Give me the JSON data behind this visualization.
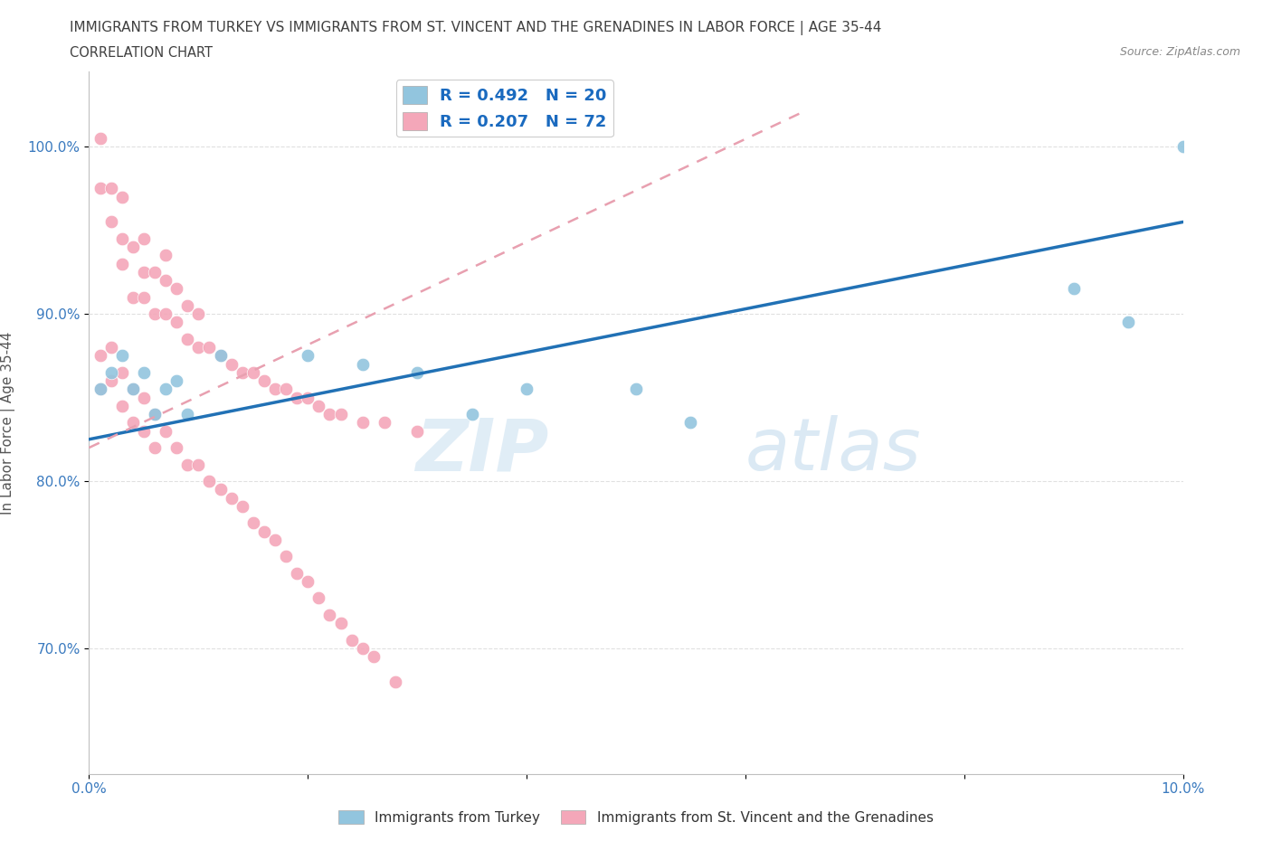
{
  "title": "IMMIGRANTS FROM TURKEY VS IMMIGRANTS FROM ST. VINCENT AND THE GRENADINES IN LABOR FORCE | AGE 35-44",
  "subtitle": "CORRELATION CHART",
  "source": "Source: ZipAtlas.com",
  "ylabel": "In Labor Force | Age 35-44",
  "xlim": [
    0.0,
    0.1
  ],
  "ylim": [
    0.625,
    1.045
  ],
  "x_ticks": [
    0.0,
    0.02,
    0.04,
    0.06,
    0.08,
    0.1
  ],
  "x_tick_labels": [
    "0.0%",
    "",
    "",
    "",
    "",
    "10.0%"
  ],
  "y_ticks": [
    0.7,
    0.8,
    0.9,
    1.0
  ],
  "y_tick_labels": [
    "70.0%",
    "80.0%",
    "90.0%",
    "100.0%"
  ],
  "turkey_R": 0.492,
  "turkey_N": 20,
  "svg_R": 0.207,
  "svg_N": 72,
  "turkey_color": "#92c5de",
  "svg_color": "#f4a7b9",
  "turkey_scatter_x": [
    0.001,
    0.002,
    0.003,
    0.004,
    0.005,
    0.006,
    0.007,
    0.008,
    0.009,
    0.012,
    0.02,
    0.025,
    0.03,
    0.035,
    0.04,
    0.05,
    0.055,
    0.09,
    0.095,
    0.1
  ],
  "turkey_scatter_y": [
    0.855,
    0.865,
    0.875,
    0.855,
    0.865,
    0.84,
    0.855,
    0.86,
    0.84,
    0.875,
    0.875,
    0.87,
    0.865,
    0.84,
    0.855,
    0.855,
    0.835,
    0.915,
    0.895,
    1.0
  ],
  "svg_scatter_x": [
    0.001,
    0.001,
    0.002,
    0.002,
    0.003,
    0.003,
    0.003,
    0.004,
    0.004,
    0.005,
    0.005,
    0.005,
    0.006,
    0.006,
    0.007,
    0.007,
    0.007,
    0.008,
    0.008,
    0.009,
    0.009,
    0.01,
    0.01,
    0.011,
    0.012,
    0.013,
    0.014,
    0.015,
    0.016,
    0.017,
    0.018,
    0.019,
    0.02,
    0.021,
    0.022,
    0.023,
    0.025,
    0.027,
    0.03,
    0.001,
    0.001,
    0.002,
    0.002,
    0.003,
    0.003,
    0.004,
    0.004,
    0.005,
    0.005,
    0.006,
    0.006,
    0.007,
    0.008,
    0.009,
    0.01,
    0.011,
    0.012,
    0.013,
    0.014,
    0.015,
    0.016,
    0.017,
    0.018,
    0.019,
    0.02,
    0.021,
    0.022,
    0.023,
    0.024,
    0.025,
    0.026,
    0.028
  ],
  "svg_scatter_y": [
    0.975,
    1.005,
    0.955,
    0.975,
    0.93,
    0.945,
    0.97,
    0.91,
    0.94,
    0.91,
    0.925,
    0.945,
    0.9,
    0.925,
    0.9,
    0.92,
    0.935,
    0.895,
    0.915,
    0.885,
    0.905,
    0.88,
    0.9,
    0.88,
    0.875,
    0.87,
    0.865,
    0.865,
    0.86,
    0.855,
    0.855,
    0.85,
    0.85,
    0.845,
    0.84,
    0.84,
    0.835,
    0.835,
    0.83,
    0.875,
    0.855,
    0.88,
    0.86,
    0.865,
    0.845,
    0.855,
    0.835,
    0.85,
    0.83,
    0.84,
    0.82,
    0.83,
    0.82,
    0.81,
    0.81,
    0.8,
    0.795,
    0.79,
    0.785,
    0.775,
    0.77,
    0.765,
    0.755,
    0.745,
    0.74,
    0.73,
    0.72,
    0.715,
    0.705,
    0.7,
    0.695,
    0.68
  ],
  "turkey_trend_x": [
    0.0,
    0.1
  ],
  "turkey_trend_y": [
    0.825,
    0.955
  ],
  "svg_trend_x": [
    0.0,
    0.03
  ],
  "svg_trend_y": [
    0.82,
    0.945
  ],
  "watermark_text": "ZIP",
  "watermark_text2": "atlas",
  "background_color": "#ffffff",
  "grid_color": "#e0e0e0",
  "title_color": "#404040",
  "axis_label_color": "#555555",
  "tick_label_color": "#3a7abf",
  "legend_label_color": "#1a6abf"
}
